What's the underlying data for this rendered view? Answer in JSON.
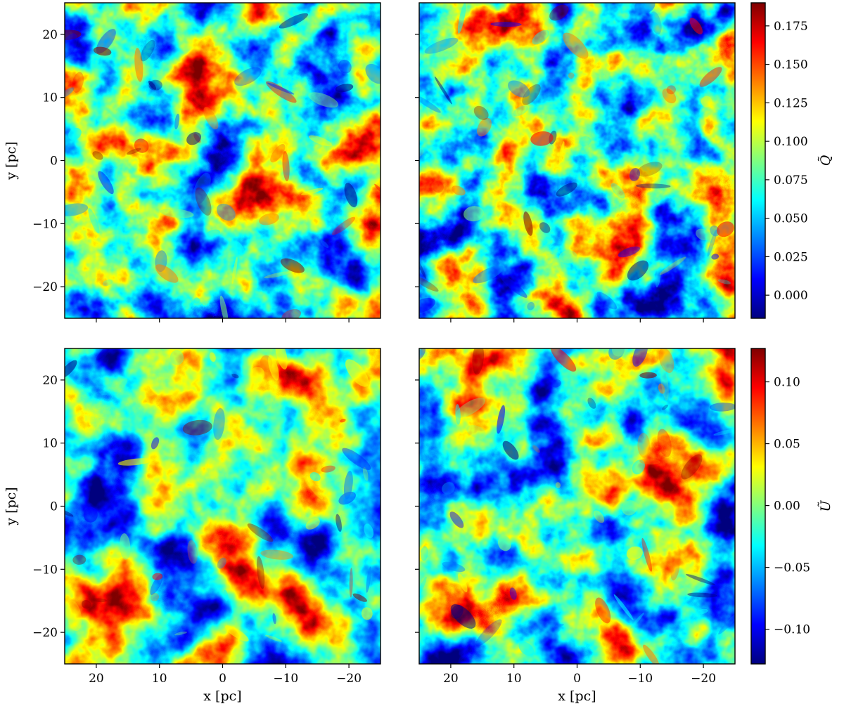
{
  "chart_data": [
    {
      "type": "heatmap",
      "panel": "top-left",
      "quantity": "Q̃",
      "xlim": [
        25,
        -25
      ],
      "ylim": [
        -25,
        25
      ],
      "xlabel": "",
      "ylabel": "y [pc]",
      "xticks": [
        20,
        10,
        0,
        -10,
        -20
      ],
      "xtick_labels_shown": false,
      "yticks": [
        20,
        10,
        0,
        -10,
        -20
      ],
      "ytick_labels": [
        "20",
        "10",
        "0",
        "−10",
        "−20"
      ],
      "colormap": "jet"
    },
    {
      "type": "heatmap",
      "panel": "top-right",
      "quantity": "Q̃",
      "xlim": [
        25,
        -25
      ],
      "ylim": [
        -25,
        25
      ],
      "xlabel": "",
      "ylabel": "",
      "xticks": [
        20,
        10,
        0,
        -10,
        -20
      ],
      "xtick_labels_shown": false,
      "yticks": [
        20,
        10,
        0,
        -10,
        -20
      ],
      "ytick_labels_shown": false,
      "colormap": "jet"
    },
    {
      "type": "heatmap",
      "panel": "bottom-left",
      "quantity": "Ũ",
      "xlim": [
        25,
        -25
      ],
      "ylim": [
        -25,
        25
      ],
      "xlabel": "x [pc]",
      "ylabel": "y [pc]",
      "xticks": [
        20,
        10,
        0,
        -10,
        -20
      ],
      "xtick_labels": [
        "20",
        "10",
        "0",
        "−10",
        "−20"
      ],
      "yticks": [
        20,
        10,
        0,
        -10,
        -20
      ],
      "ytick_labels": [
        "20",
        "10",
        "0",
        "−10",
        "−20"
      ],
      "colormap": "jet"
    },
    {
      "type": "heatmap",
      "panel": "bottom-right",
      "quantity": "Ũ",
      "xlim": [
        25,
        -25
      ],
      "ylim": [
        -25,
        25
      ],
      "xlabel": "x [pc]",
      "ylabel": "",
      "xticks": [
        20,
        10,
        0,
        -10,
        -20
      ],
      "xtick_labels": [
        "20",
        "10",
        "0",
        "−10",
        "−20"
      ],
      "yticks": [
        20,
        10,
        0,
        -10,
        -20
      ],
      "ytick_labels_shown": false,
      "colormap": "jet"
    }
  ],
  "colorbars": [
    {
      "label": "Q̃",
      "range": [
        -0.015,
        0.19
      ],
      "ticks": [
        0.0,
        0.025,
        0.05,
        0.075,
        0.1,
        0.125,
        0.15,
        0.175
      ],
      "tick_labels": [
        "0.000",
        "0.025",
        "0.050",
        "0.075",
        "0.100",
        "0.125",
        "0.150",
        "0.175"
      ]
    },
    {
      "label": "Ũ",
      "range": [
        -0.128,
        0.127
      ],
      "ticks": [
        -0.1,
        -0.05,
        0.0,
        0.05,
        0.1
      ],
      "tick_labels": [
        "−0.10",
        "−0.05",
        "0.00",
        "0.05",
        "0.10"
      ]
    }
  ],
  "colors": {
    "jet": [
      "#00007f",
      "#0000ff",
      "#007fff",
      "#00ffff",
      "#7fff7f",
      "#ffff00",
      "#ff7f00",
      "#ff0000",
      "#7f0000"
    ]
  }
}
